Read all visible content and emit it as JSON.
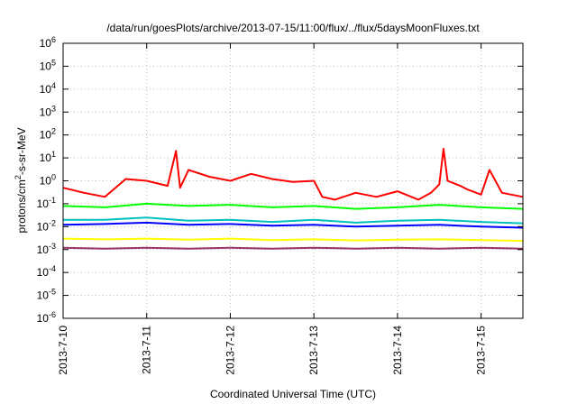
{
  "chart_data": {
    "type": "line",
    "title": "/data/run/goesPlots/archive/2013-07-15/11:00/flux/../flux/5daysMoonFluxes.txt",
    "xlabel": "Coordinated Universal Time (UTC)",
    "ylabel": {
      "prefix": "protons/cm",
      "sup": "2",
      "suffix": "-s-sr-MeV"
    },
    "yscale": "log",
    "ylim": [
      1e-06,
      1000000.0
    ],
    "xlim": [
      "2013-07-10 00:00",
      "2013-07-15 12:00"
    ],
    "grid": true,
    "legend": "none",
    "yticks": [
      {
        "exp": -6
      },
      {
        "exp": -5
      },
      {
        "exp": -4
      },
      {
        "exp": -3
      },
      {
        "exp": -2
      },
      {
        "exp": -1
      },
      {
        "exp": 0
      },
      {
        "exp": 1
      },
      {
        "exp": 2
      },
      {
        "exp": 3
      },
      {
        "exp": 4
      },
      {
        "exp": 5
      },
      {
        "exp": 6
      }
    ],
    "xticks": [
      "2013-7-10",
      "2013-7-11",
      "2013-7-12",
      "2013-7-13",
      "2013-7-14",
      "2013-7-15"
    ],
    "series": [
      {
        "color": "#ff0000",
        "x": [
          0,
          0.25,
          0.5,
          0.75,
          1.0,
          1.25,
          1.35,
          1.4,
          1.5,
          1.75,
          2.0,
          2.25,
          2.5,
          2.75,
          3.0,
          3.1,
          3.25,
          3.5,
          3.75,
          4.0,
          4.25,
          4.4,
          4.5,
          4.55,
          4.6,
          4.75,
          4.85,
          5.0,
          5.1,
          5.25,
          5.5
        ],
        "values": [
          0.5,
          0.3,
          0.2,
          1.2,
          1.0,
          0.6,
          20,
          0.5,
          3,
          1.5,
          1.0,
          2.0,
          1.2,
          0.9,
          1.0,
          0.2,
          0.15,
          0.3,
          0.2,
          0.35,
          0.15,
          0.3,
          0.7,
          25,
          1.0,
          0.6,
          0.4,
          0.25,
          3,
          0.3,
          0.2
        ]
      },
      {
        "color": "#00ff00",
        "x": [
          0,
          0.5,
          1.0,
          1.5,
          2.0,
          2.5,
          3.0,
          3.5,
          4.0,
          4.5,
          5.0,
          5.5
        ],
        "values": [
          0.08,
          0.07,
          0.1,
          0.08,
          0.09,
          0.07,
          0.08,
          0.06,
          0.07,
          0.09,
          0.07,
          0.06
        ]
      },
      {
        "color": "#00bfbf",
        "x": [
          0,
          0.5,
          1.0,
          1.5,
          2.0,
          2.5,
          3.0,
          3.5,
          4.0,
          4.5,
          5.0,
          5.5
        ],
        "values": [
          0.02,
          0.02,
          0.025,
          0.018,
          0.02,
          0.016,
          0.02,
          0.015,
          0.018,
          0.02,
          0.016,
          0.014
        ]
      },
      {
        "color": "#0000ff",
        "x": [
          0,
          0.5,
          1.0,
          1.5,
          2.0,
          2.5,
          3.0,
          3.5,
          4.0,
          4.5,
          5.0,
          5.5
        ],
        "values": [
          0.012,
          0.013,
          0.015,
          0.012,
          0.013,
          0.011,
          0.012,
          0.01,
          0.011,
          0.012,
          0.01,
          0.009
        ]
      },
      {
        "color": "#ffff00",
        "x": [
          0,
          0.5,
          1.0,
          1.5,
          2.0,
          2.5,
          3.0,
          3.5,
          4.0,
          4.5,
          5.0,
          5.5
        ],
        "values": [
          0.003,
          0.0028,
          0.003,
          0.0027,
          0.003,
          0.0026,
          0.0028,
          0.0025,
          0.0027,
          0.0028,
          0.0026,
          0.0024
        ]
      },
      {
        "color": "#993366",
        "x": [
          0,
          0.5,
          1.0,
          1.5,
          2.0,
          2.5,
          3.0,
          3.5,
          4.0,
          4.5,
          5.0,
          5.5
        ],
        "values": [
          0.0012,
          0.0011,
          0.0012,
          0.0011,
          0.0012,
          0.0011,
          0.0012,
          0.0011,
          0.0012,
          0.0011,
          0.0012,
          0.0011
        ]
      }
    ]
  }
}
